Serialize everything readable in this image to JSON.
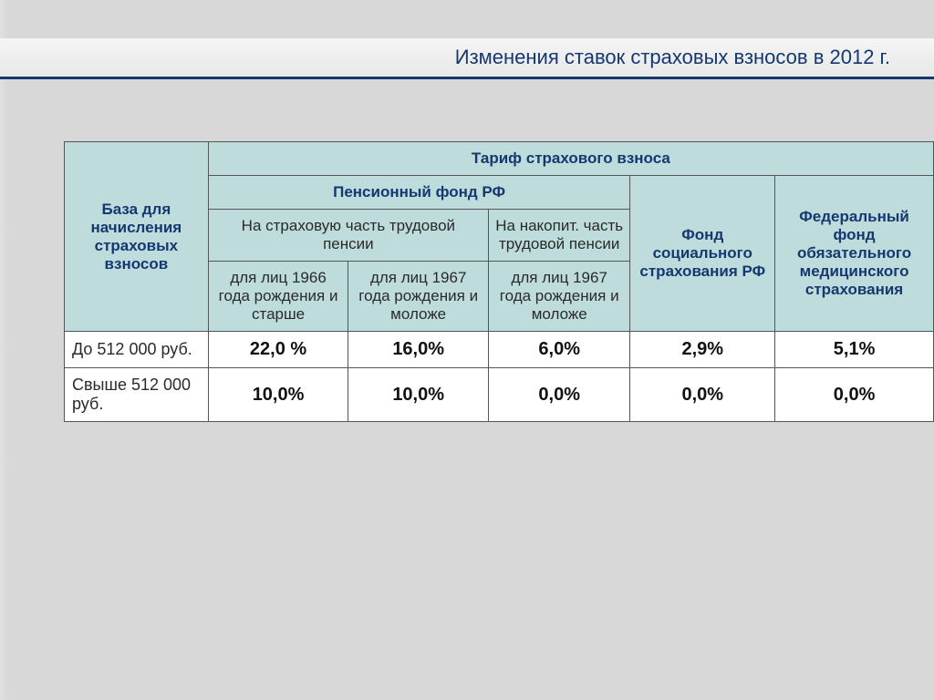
{
  "title": "Изменения ставок страховых взносов в 2012 г.",
  "header": {
    "base": "База для начисления страховых взносов",
    "tariff": "Тариф страхового взноса",
    "pension": "Пенсионный фонд РФ",
    "insurance_part": "На страховую часть трудовой пенсии",
    "accum_part": "На накопит. часть трудовой пенсии",
    "social": "Фонд социального страхования РФ",
    "medical": "Федеральный фонд обязательного медицинского страхования",
    "born1966": "для лиц 1966 года рождения и старше",
    "born1967a": "для лиц 1967 года рождения и моложе",
    "born1967b": "для лиц 1967 года рождения и моложе"
  },
  "rows": [
    {
      "label": "До 512 000 руб.",
      "v": [
        "22,0 %",
        "16,0%",
        "6,0%",
        "2,9%",
        "5,1%"
      ]
    },
    {
      "label": "Свыше 512 000 руб.",
      "v": [
        "10,0%",
        "10,0%",
        "0,0%",
        "0,0%",
        "0,0%"
      ]
    }
  ],
  "style": {
    "header_bg": "#bedcdc",
    "header_color": "#14386f",
    "border_color": "#555555",
    "title_color": "#14386f",
    "data_bg": "#ffffff"
  }
}
